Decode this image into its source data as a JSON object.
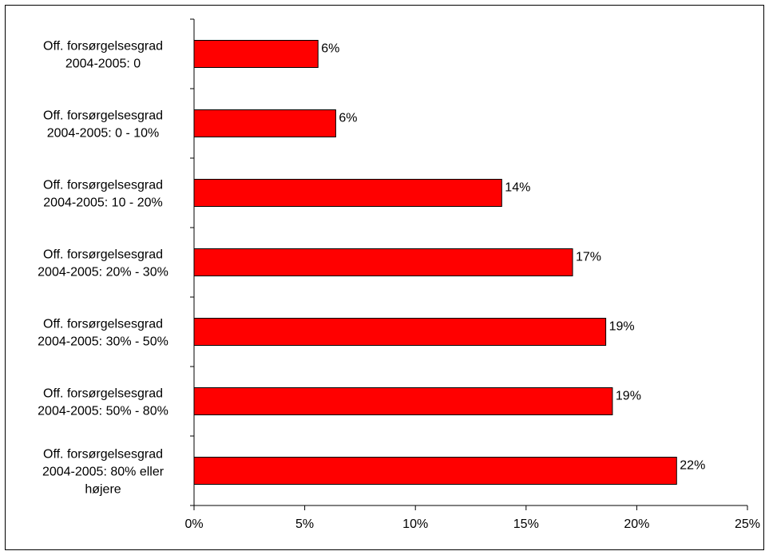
{
  "chart_data": {
    "type": "bar",
    "orientation": "horizontal",
    "categories": [
      [
        "Off. forsørgelsesgrad",
        "2004-2005: 0"
      ],
      [
        "Off. forsørgelsesgrad",
        "2004-2005: 0 - 10%"
      ],
      [
        "Off. forsørgelsesgrad",
        "2004-2005: 10 - 20%"
      ],
      [
        "Off. forsørgelsesgrad",
        "2004-2005: 20% - 30%"
      ],
      [
        "Off. forsørgelsesgrad",
        "2004-2005: 30% - 50%"
      ],
      [
        "Off. forsørgelsesgrad",
        "2004-2005: 50% - 80%"
      ],
      [
        "Off. forsørgelsesgrad",
        "2004-2005: 80% eller",
        "højere"
      ]
    ],
    "values": [
      5.6,
      6.4,
      13.9,
      17.1,
      18.6,
      18.9,
      21.8
    ],
    "data_labels": [
      "6%",
      "6%",
      "14%",
      "17%",
      "19%",
      "19%",
      "22%"
    ],
    "xlim": [
      0,
      25
    ],
    "x_ticks": [
      0,
      5,
      10,
      15,
      20,
      25
    ],
    "x_tick_labels": [
      "0%",
      "5%",
      "10%",
      "15%",
      "20%",
      "25%"
    ],
    "title": "",
    "xlabel": "",
    "ylabel": "",
    "grid": false,
    "legend": "none",
    "colors": {
      "bar_fill": "#ff0000",
      "bar_stroke": "#000000",
      "axis": "#000000",
      "text": "#000000"
    }
  }
}
